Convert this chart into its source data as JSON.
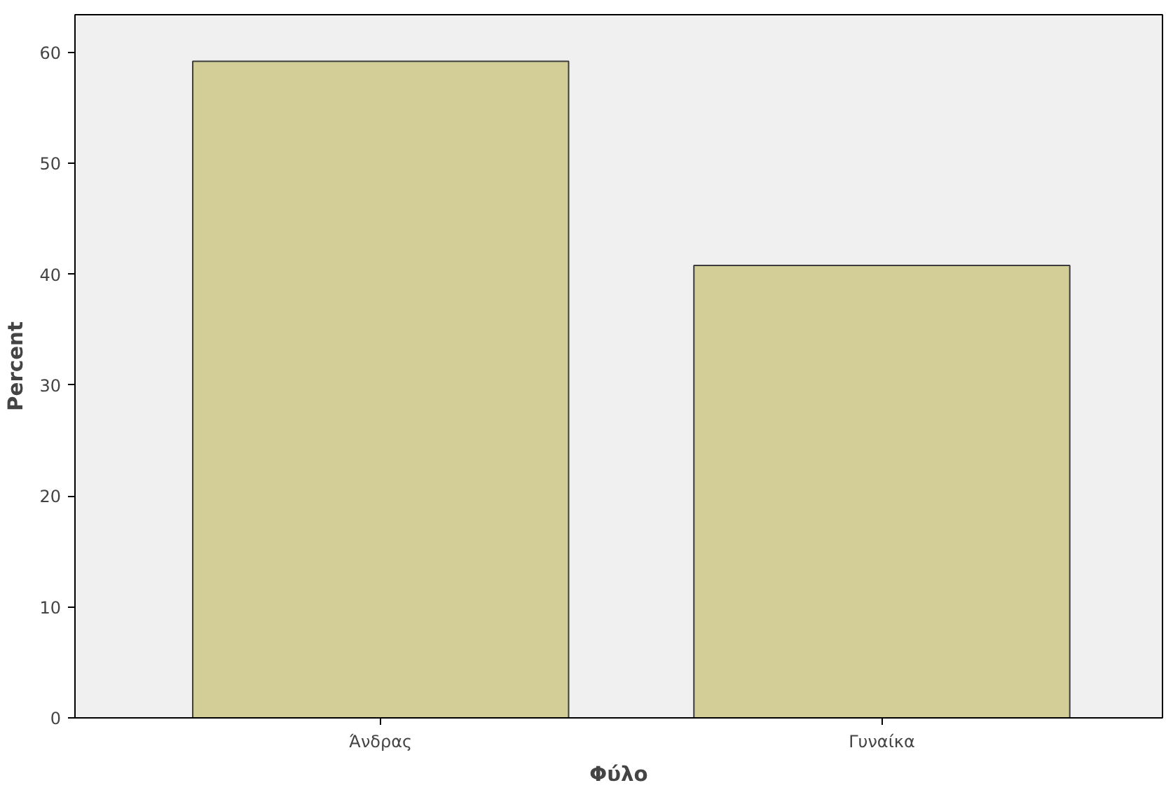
{
  "chart_data": {
    "type": "bar",
    "xlabel": "Φύλο",
    "ylabel": "Percent",
    "categories": [
      "Άνδρας",
      "Γυναίκα"
    ],
    "values": [
      59.2,
      40.8
    ],
    "color": "#d3ce97",
    "ylim": [
      0,
      63.4
    ],
    "yticks": [
      0,
      10,
      20,
      30,
      40,
      50,
      60
    ],
    "grid": false
  }
}
